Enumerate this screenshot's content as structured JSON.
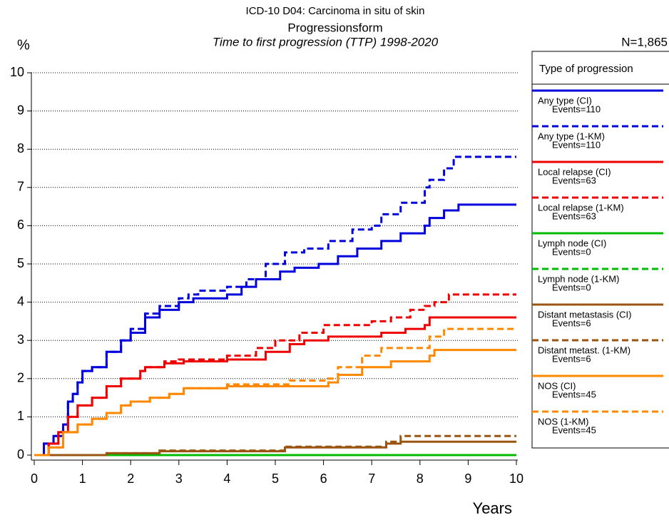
{
  "chart_data": {
    "type": "step",
    "title": "ICD-10 D04: Carcinoma in situ of skin",
    "subtitle": "Progressionsform",
    "subtitle2": "Time to first progression (TTP) 1998-2020",
    "y_label": "%",
    "x_label": "Years",
    "n_label": "N=1,865",
    "legend_title": "Type of progression",
    "grid": true,
    "xlim": [
      0,
      10
    ],
    "xticks": [
      0,
      1,
      2,
      3,
      4,
      5,
      6,
      7,
      8,
      9,
      10
    ],
    "ylim": [
      0,
      10
    ],
    "yticks": [
      0,
      1,
      2,
      3,
      4,
      5,
      6,
      7,
      8,
      9,
      10
    ],
    "series": [
      {
        "name": "Any type (CI)",
        "events": "Events=110",
        "color": "#0000dd",
        "dashed": false,
        "x": [
          0,
          0.2,
          0.4,
          0.6,
          0.7,
          0.8,
          0.9,
          1.0,
          1.2,
          1.5,
          1.8,
          2.0,
          2.3,
          2.6,
          3.0,
          3.3,
          4.0,
          4.3,
          4.6,
          5.1,
          5.4,
          5.9,
          6.3,
          6.7,
          7.2,
          7.6,
          8.1,
          8.2,
          8.5,
          8.8,
          10
        ],
        "values": [
          0,
          0.3,
          0.5,
          0.8,
          1.4,
          1.6,
          1.9,
          2.2,
          2.3,
          2.7,
          3.0,
          3.2,
          3.6,
          3.8,
          4.0,
          4.1,
          4.2,
          4.4,
          4.6,
          4.8,
          4.9,
          5.0,
          5.2,
          5.4,
          5.6,
          5.8,
          6.0,
          6.2,
          6.4,
          6.55,
          6.55
        ]
      },
      {
        "name": "Any type (1-KM)",
        "events": "Events=110",
        "color": "#0000dd",
        "dashed": true,
        "x": [
          0,
          0.2,
          0.4,
          0.6,
          0.7,
          0.8,
          0.9,
          1.0,
          1.2,
          1.5,
          1.8,
          2.0,
          2.3,
          2.6,
          3.0,
          3.2,
          3.4,
          4.0,
          4.4,
          4.8,
          5.2,
          5.6,
          6.1,
          6.6,
          7.0,
          7.2,
          7.6,
          8.1,
          8.2,
          8.5,
          8.7,
          10
        ],
        "values": [
          0,
          0.3,
          0.5,
          0.8,
          1.4,
          1.6,
          1.9,
          2.2,
          2.3,
          2.7,
          3.0,
          3.3,
          3.7,
          3.9,
          4.1,
          4.2,
          4.3,
          4.4,
          4.6,
          5.0,
          5.3,
          5.4,
          5.6,
          5.9,
          6.0,
          6.3,
          6.6,
          7.0,
          7.2,
          7.5,
          7.8,
          7.8
        ]
      },
      {
        "name": "Local relapse (CI)",
        "events": "Events=63",
        "color": "#ee0000",
        "dashed": false,
        "x": [
          0,
          0.3,
          0.5,
          0.7,
          0.9,
          1.2,
          1.5,
          1.8,
          2.2,
          2.3,
          2.7,
          3.1,
          4.0,
          4.8,
          5.3,
          5.6,
          6.1,
          7.2,
          7.7,
          8.1,
          8.2,
          10
        ],
        "values": [
          0,
          0.3,
          0.6,
          1.0,
          1.3,
          1.5,
          1.8,
          2.0,
          2.2,
          2.3,
          2.4,
          2.45,
          2.5,
          2.7,
          2.9,
          3.0,
          3.1,
          3.2,
          3.3,
          3.4,
          3.6,
          3.6
        ]
      },
      {
        "name": "Local relapse (1-KM)",
        "events": "Events=63",
        "color": "#ee0000",
        "dashed": true,
        "x": [
          0,
          0.3,
          0.5,
          0.7,
          0.9,
          1.2,
          1.5,
          1.8,
          2.2,
          2.3,
          2.7,
          3.0,
          4.0,
          4.6,
          5.0,
          5.5,
          6.0,
          7.0,
          7.4,
          7.8,
          8.1,
          8.3,
          8.6,
          10
        ],
        "values": [
          0,
          0.3,
          0.6,
          1.0,
          1.3,
          1.5,
          1.8,
          2.0,
          2.2,
          2.3,
          2.45,
          2.5,
          2.6,
          2.8,
          3.0,
          3.2,
          3.4,
          3.5,
          3.6,
          3.8,
          3.9,
          4.0,
          4.2,
          4.2
        ]
      },
      {
        "name": "Lymph node (CI)",
        "events": "Events=0",
        "color": "#00bb00",
        "dashed": false,
        "x": [
          0,
          10
        ],
        "values": [
          0,
          0
        ]
      },
      {
        "name": "Lymph node (1-KM)",
        "events": "Events=0",
        "color": "#00bb00",
        "dashed": true,
        "x": [
          0,
          10
        ],
        "values": [
          0,
          0
        ]
      },
      {
        "name": "Distant metastasis (CI)",
        "events": "Events=6",
        "color": "#995511",
        "dashed": false,
        "x": [
          0,
          1.5,
          2.6,
          5.2,
          7.3,
          7.6,
          10
        ],
        "values": [
          0,
          0.05,
          0.1,
          0.2,
          0.3,
          0.35,
          0.35
        ]
      },
      {
        "name": "Distant metast. (1-KM)",
        "events": "Events=6",
        "color": "#995511",
        "dashed": true,
        "x": [
          0,
          1.5,
          2.6,
          5.2,
          7.3,
          7.6,
          10
        ],
        "values": [
          0,
          0.05,
          0.12,
          0.22,
          0.35,
          0.5,
          0.5
        ]
      },
      {
        "name": "NOS (CI)",
        "events": "Events=45",
        "color": "#ff8800",
        "dashed": false,
        "x": [
          0,
          0.3,
          0.6,
          0.9,
          1.2,
          1.5,
          1.8,
          2.0,
          2.4,
          2.8,
          3.1,
          4.0,
          5.0,
          6.1,
          6.3,
          6.8,
          7.4,
          8.2,
          8.3,
          10
        ],
        "values": [
          0,
          0.2,
          0.6,
          0.8,
          0.95,
          1.1,
          1.3,
          1.4,
          1.5,
          1.6,
          1.75,
          1.8,
          1.8,
          1.9,
          2.1,
          2.3,
          2.45,
          2.6,
          2.75,
          2.75
        ]
      },
      {
        "name": "NOS (1-KM)",
        "events": "Events=45",
        "color": "#ff8800",
        "dashed": true,
        "x": [
          0,
          0.3,
          0.6,
          0.9,
          1.2,
          1.5,
          1.8,
          2.0,
          2.4,
          2.8,
          3.1,
          4.0,
          5.3,
          6.1,
          6.3,
          6.8,
          7.2,
          8.2,
          8.5,
          10
        ],
        "values": [
          0,
          0.2,
          0.6,
          0.8,
          0.95,
          1.1,
          1.3,
          1.4,
          1.5,
          1.6,
          1.75,
          1.85,
          1.95,
          2.0,
          2.3,
          2.6,
          2.8,
          3.1,
          3.3,
          3.3
        ]
      }
    ]
  }
}
